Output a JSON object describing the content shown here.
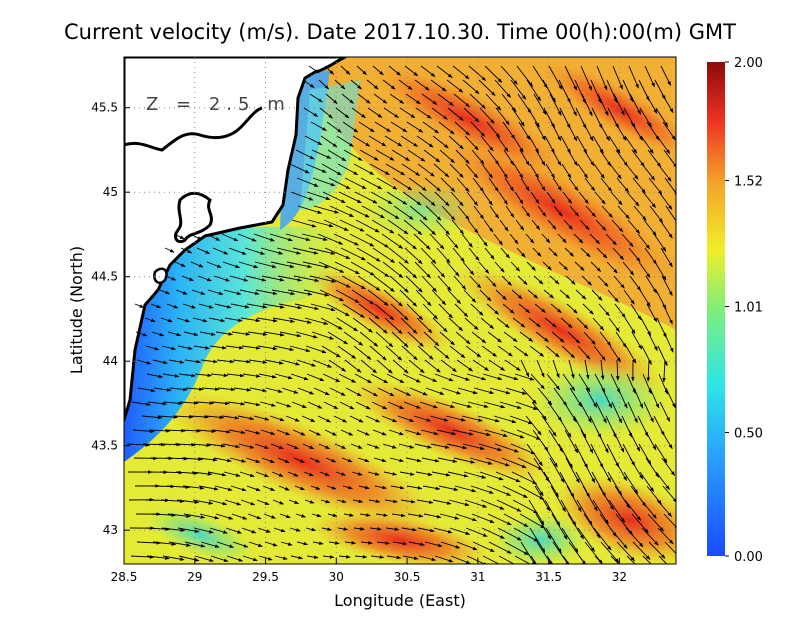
{
  "title": "Current velocity (m/s). Date 2017.10.30. Time 00(h):00(m) GMT",
  "depth_label": "Z = 2.5 m",
  "xlabel": "Longitude (East)",
  "ylabel": "Latitude (North)",
  "x_ticks": [
    "28.5",
    "29",
    "29.5",
    "30",
    "30.5",
    "31",
    "31.5",
    "32"
  ],
  "y_ticks": [
    "43",
    "43.5",
    "44",
    "44.5",
    "45",
    "45.5"
  ],
  "colorbar_ticks": [
    "0.00",
    "0.50",
    "1.01",
    "1.52",
    "2.00"
  ],
  "chart_data": {
    "type": "heatmap",
    "title": "Current velocity (m/s). Date 2017.10.30. Time 00(h):00(m) GMT",
    "xlabel": "Longitude (East)",
    "ylabel": "Latitude (North)",
    "xlim": [
      28.5,
      32.4
    ],
    "ylim": [
      42.8,
      45.8
    ],
    "x_ticks": [
      28.5,
      29,
      29.5,
      30,
      30.5,
      31,
      31.5,
      32
    ],
    "y_ticks": [
      43,
      43.5,
      44,
      44.5,
      45,
      45.5
    ],
    "colorbar": {
      "min": 0.0,
      "max": 2.0,
      "ticks": [
        0.0,
        0.5,
        1.01,
        1.52,
        2.0
      ],
      "unit": "m/s"
    },
    "grid": true,
    "colors": {
      "low": "#1a4bff",
      "mid": "#f2ee2a",
      "high": "#8c0a0a",
      "land": "#ffffff",
      "coast": "#000000"
    }
  }
}
